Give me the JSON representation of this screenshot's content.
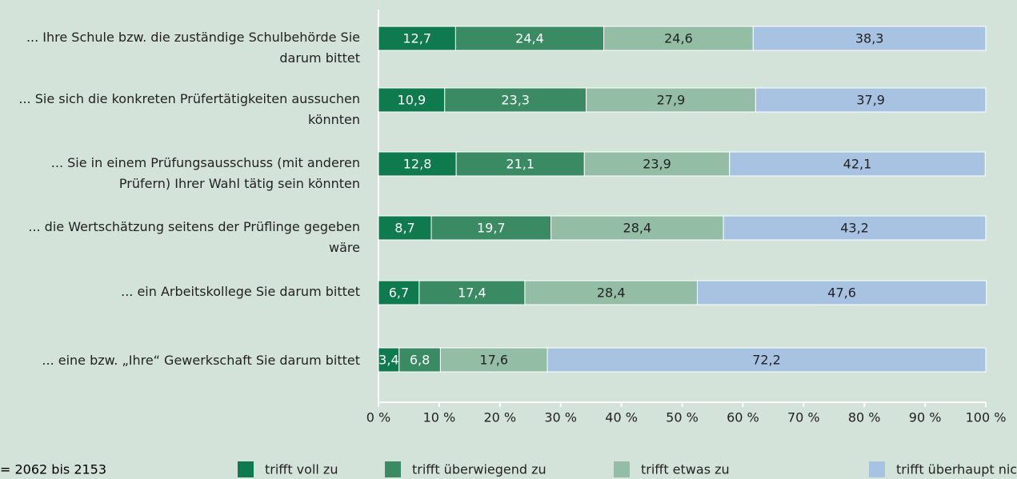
{
  "chart_data": {
    "type": "stacked-bar-horizontal",
    "categories": [
      "... Ihre Schule bzw. die zuständige Schulbehörde Sie darum bittet",
      "... Sie sich die konkreten Prüfertätigkeiten aussuchen könnten",
      "... Sie in einem Prüfungsausschuss (mit anderen Prüfern) Ihrer Wahl tätig sein könnten",
      "... die Wertschätzung seitens der Prüflinge gegeben wäre",
      "... ein Arbeitskollege Sie darum bittet",
      "... eine bzw. „Ihre“ Gewerkschaft Sie darum bittet"
    ],
    "series": [
      {
        "name": "trifft voll zu",
        "color": "#0f7a4d",
        "values": [
          12.7,
          10.9,
          12.8,
          8.7,
          6.7,
          3.4
        ],
        "value_labels": [
          "12,7",
          "10,9",
          "12,8",
          "8,7",
          "6,7",
          "3,4"
        ]
      },
      {
        "name": "trifft überwiegend zu",
        "color": "#3a8b63",
        "values": [
          24.4,
          23.3,
          21.1,
          19.7,
          17.4,
          6.8
        ],
        "value_labels": [
          "24,4",
          "23,3",
          "21,1",
          "19,7",
          "17,4",
          "6,8"
        ]
      },
      {
        "name": "trifft etwas zu",
        "color": "#93bea5",
        "values": [
          24.6,
          27.9,
          23.9,
          28.4,
          28.4,
          17.6
        ],
        "value_labels": [
          "24,6",
          "27,9",
          "23,9",
          "28,4",
          "28,4",
          "17,6"
        ]
      },
      {
        "name": "trifft überhaupt nicht zu",
        "color": "#a7c3e1",
        "values": [
          38.3,
          37.9,
          42.1,
          43.2,
          47.6,
          72.2
        ],
        "value_labels": [
          "38,3",
          "37,9",
          "42,1",
          "43,2",
          "47,6",
          "72,2"
        ]
      }
    ],
    "xlim": [
      0,
      100
    ],
    "xticks": [
      {
        "value": 0,
        "label": "0 %"
      },
      {
        "value": 10,
        "label": "10 %"
      },
      {
        "value": 20,
        "label": "20 %"
      },
      {
        "value": 30,
        "label": "30 %"
      },
      {
        "value": 40,
        "label": "40 %"
      },
      {
        "value": 50,
        "label": "50 %"
      },
      {
        "value": 60,
        "label": "60 %"
      },
      {
        "value": 70,
        "label": "70 %"
      },
      {
        "value": 80,
        "label": "80 %"
      },
      {
        "value": 90,
        "label": "90 %"
      },
      {
        "value": 100,
        "label": "100 %"
      }
    ],
    "note": "= 2062 bis 2153"
  }
}
